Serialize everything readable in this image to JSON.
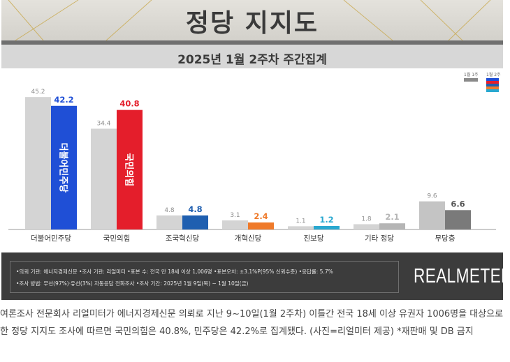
{
  "title": "정당 지지도",
  "subtitle": "2025년 1월 2주차 주간집계",
  "legend": {
    "prev": "1월 1주",
    "curr": "1월 2주"
  },
  "colors": {
    "prev_bar": "#d4d4d4",
    "prev_bar_nopartisan": "#c4c4c4",
    "curr_default": "#8a8a8a",
    "democratic": "#1f4fd6",
    "ppp": "#e41e2b",
    "rebuilding": "#1f5fb0",
    "reform": "#ef7a2a",
    "progressive": "#29a8d0",
    "other": "#b5b5b5",
    "none": "#7a7a7a"
  },
  "chart_data": {
    "type": "bar",
    "categories": [
      "더불어민주당",
      "국민의힘",
      "조국혁신당",
      "개혁신당",
      "진보당",
      "기타 정당",
      "무당층"
    ],
    "series": [
      {
        "name": "1월 1주",
        "values": [
          45.2,
          34.4,
          4.8,
          3.1,
          1.1,
          1.8,
          9.6
        ]
      },
      {
        "name": "1월 2주",
        "values": [
          42.2,
          40.8,
          4.8,
          2.4,
          1.2,
          2.1,
          6.6
        ]
      }
    ],
    "value_labels": {
      "prev": [
        "45.2",
        "34.4",
        "4.8",
        "3.1",
        "1.1",
        "1.8",
        "9.6"
      ],
      "curr": [
        "42.2",
        "40.8",
        "4.8",
        "2.4",
        "1.2",
        "2.1",
        "6.6"
      ]
    },
    "bar_text": [
      "더불어민주당",
      "국민의힘"
    ],
    "curr_colors": [
      "democratic",
      "ppp",
      "rebuilding",
      "reform",
      "progressive",
      "other",
      "none"
    ],
    "ylim": [
      0,
      50
    ],
    "grid": false,
    "legend_position": "top-right"
  },
  "footer": {
    "line1": "•의뢰 기관: 에너지경제신문  •조사 기관: 리얼미터  •표본 수: 전국 만 18세 이상 1,006명  •표본오차: ±3.1%P(95% 신뢰수준)  •응답률: 5.7%",
    "line2": "•조사 방법: 무선(97%)·유선(3%) 자동응답 전화조사  •조사 기간: 2025년 1월 9일(목) ~ 1월 10일(금)",
    "logo": "REALMETER"
  },
  "caption": "여론조사 전문회사 리얼미터가 에너지경제신문 의뢰로 지난 9~10일(1월 2주차) 이틀간 전국 18세 이상 유권자 1006명을 대상으로 한 정당 지지도 조사에 따르면 국민의힘은 40.8%, 민주당은 42.2%로 집계됐다. (사진=리얼미터 제공) *재판매 및 DB 금지"
}
